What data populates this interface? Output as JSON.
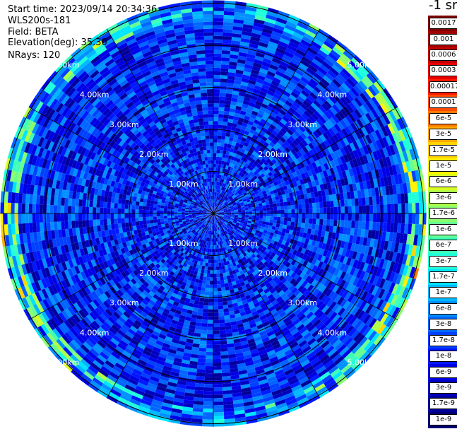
{
  "header": {
    "start_time": "Start time: 2023/09/14 20:34:36",
    "instrument": "WLS200s-181",
    "field": "Field: BETA",
    "elevation": "Elevation(deg): 35.30",
    "nrays": "NRays: 120"
  },
  "colorbar": {
    "title": "-1 sr",
    "labels": [
      "0.0017",
      "0.001",
      "0.0006",
      "0.0003",
      "0.00017",
      "0.0001",
      "6e-5",
      "3e-5",
      "1.7e-5",
      "1e-5",
      "6e-6",
      "3e-6",
      "1.7e-6",
      "1e-6",
      "6e-7",
      "3e-7",
      "1.7e-7",
      "1e-7",
      "6e-8",
      "3e-8",
      "1.7e-8",
      "1e-8",
      "6e-9",
      "3e-9",
      "1.7e-9",
      "1e-9"
    ],
    "colors": [
      "#7f0000",
      "#a10000",
      "#c40000",
      "#e80000",
      "#ff1a00",
      "#ff4a00",
      "#ff7a00",
      "#ffa800",
      "#ffd400",
      "#fff200",
      "#d8ff1f",
      "#b0ff47",
      "#8aff6d",
      "#66ff91",
      "#40ffb7",
      "#1fffdb",
      "#00e5ff",
      "#00b8ff",
      "#0090ff",
      "#0066ff",
      "#0040ff",
      "#0018ff",
      "#0000e6",
      "#0000c0",
      "#000099",
      "#000070"
    ]
  },
  "chart_data": {
    "type": "heatmap",
    "subtype": "polar-ppi",
    "field": "BETA",
    "elevation_deg": 35.3,
    "n_rays": 120,
    "range_rings_km": [
      1,
      2,
      3,
      4,
      5
    ],
    "ring_labels": [
      "1.00km",
      "2.00km",
      "3.00km",
      "4.00km",
      "5.00km"
    ],
    "value_scale": "log",
    "value_range": [
      1e-09,
      0.0017
    ],
    "typical_background_value": 1e-08,
    "near_edge_enhancement_value": 1e-05
  }
}
